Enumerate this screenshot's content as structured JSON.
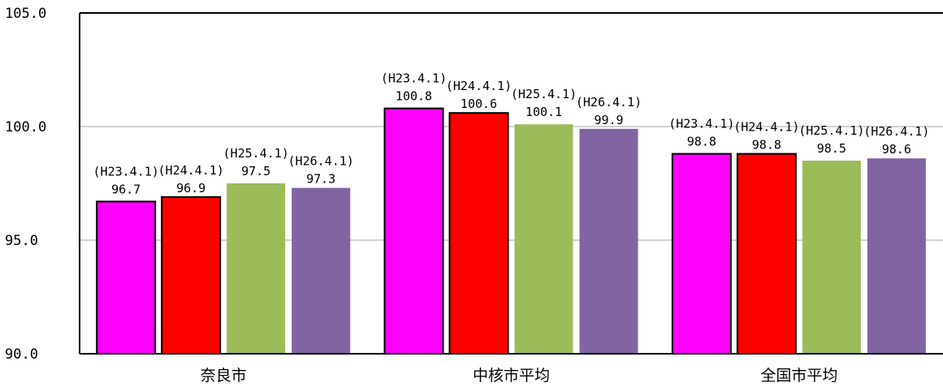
{
  "chart_data": {
    "type": "bar",
    "title": "",
    "xlabel": "",
    "ylabel": "",
    "ylim": [
      90,
      105
    ],
    "yticks": [
      90,
      95,
      100,
      105
    ],
    "ytick_labels": [
      "90.0",
      "95.0",
      "100.0",
      "105.0"
    ],
    "grid": "horizontal",
    "categories": [
      "奈良市",
      "中核市平均",
      "全国市平均"
    ],
    "series": [
      {
        "label": "(H23.4.1)",
        "color": "#ff00ff",
        "outlined": true,
        "values": [
          96.7,
          100.8,
          98.8
        ],
        "value_labels": [
          "96.7",
          "100.8",
          "98.8"
        ]
      },
      {
        "label": "(H24.4.1)",
        "color": "#ff0000",
        "outlined": true,
        "values": [
          96.9,
          100.6,
          98.8
        ],
        "value_labels": [
          "96.9",
          "100.6",
          "98.8"
        ]
      },
      {
        "label": "(H25.4.1)",
        "color": "#9bbb59",
        "outlined": false,
        "values": [
          97.5,
          100.1,
          98.5
        ],
        "value_labels": [
          "97.5",
          "100.1",
          "98.5"
        ]
      },
      {
        "label": "(H26.4.1)",
        "color": "#8064a2",
        "outlined": false,
        "values": [
          97.3,
          99.9,
          98.6
        ],
        "value_labels": [
          "97.3",
          "99.9",
          "98.6"
        ]
      }
    ]
  }
}
